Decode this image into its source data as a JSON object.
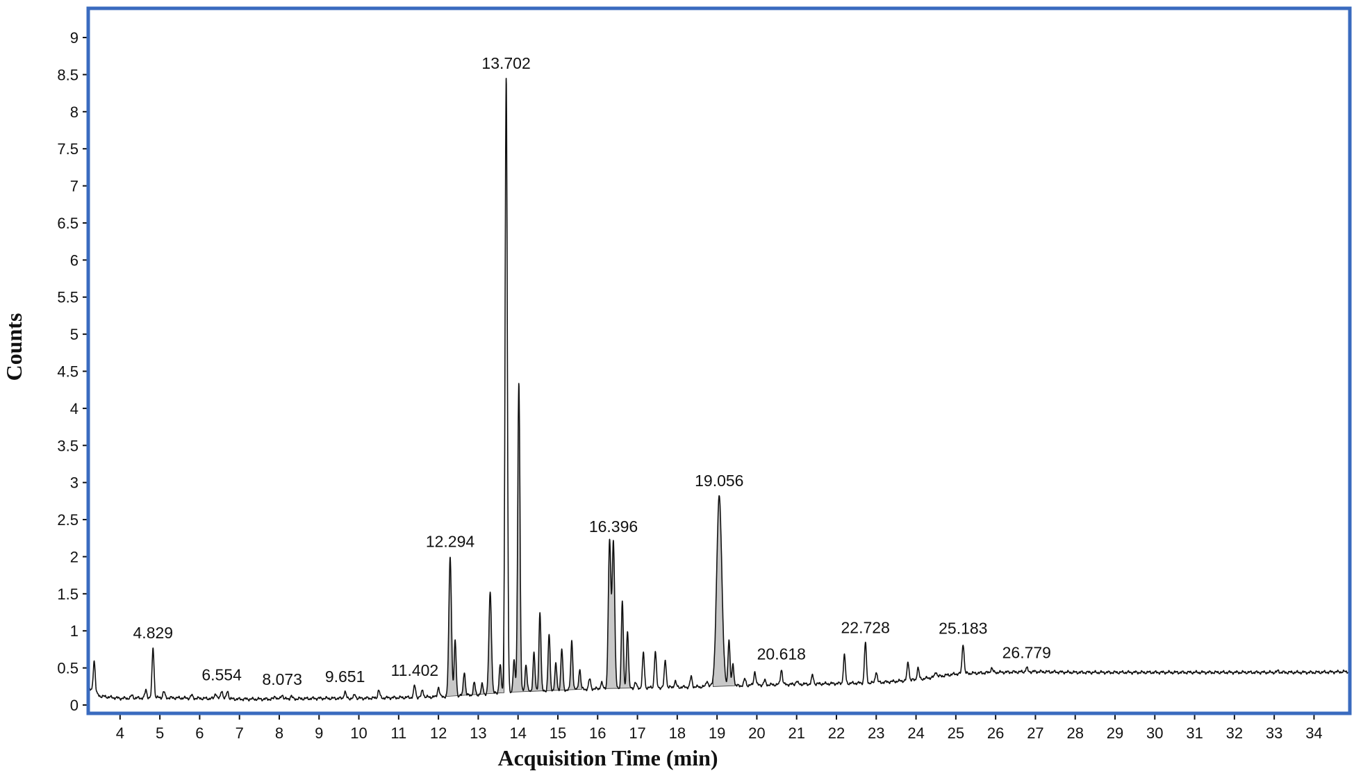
{
  "chart_data": {
    "type": "line",
    "title": "",
    "xlabel": "Acquisition Time (min)",
    "ylabel": "Counts",
    "xlim": [
      3.2,
      34.9
    ],
    "ylim": [
      0,
      9.3
    ],
    "xticks": [
      4,
      5,
      6,
      7,
      8,
      9,
      10,
      11,
      12,
      13,
      14,
      15,
      16,
      17,
      18,
      19,
      20,
      21,
      22,
      23,
      24,
      25,
      26,
      27,
      28,
      29,
      30,
      31,
      32,
      33,
      34
    ],
    "yticks": [
      0,
      0.5,
      1,
      1.5,
      2,
      2.5,
      3,
      3.5,
      4,
      4.5,
      5,
      5.5,
      6,
      6.5,
      7,
      7.5,
      8,
      8.5,
      9
    ],
    "ytick_labels": [
      "0",
      "0.5",
      "1",
      "1.5",
      "2",
      "2.5",
      "3",
      "3.5",
      "4",
      "4.5",
      "5",
      "5.5",
      "6",
      "6.5",
      "7",
      "7.5",
      "8",
      "8.5",
      "9"
    ],
    "grid": false,
    "colors": {
      "line": "#111111",
      "fill": "#c8c8c8",
      "frame": "#3a6bbf"
    },
    "baseline": [
      [
        3.2,
        0.22
      ],
      [
        3.5,
        0.12
      ],
      [
        4,
        0.09
      ],
      [
        5,
        0.1
      ],
      [
        6,
        0.09
      ],
      [
        7,
        0.08
      ],
      [
        8,
        0.08
      ],
      [
        9,
        0.09
      ],
      [
        10,
        0.09
      ],
      [
        11,
        0.1
      ],
      [
        12,
        0.11
      ],
      [
        13,
        0.14
      ],
      [
        14,
        0.18
      ],
      [
        15,
        0.2
      ],
      [
        16,
        0.22
      ],
      [
        17,
        0.23
      ],
      [
        18,
        0.24
      ],
      [
        19,
        0.25
      ],
      [
        20,
        0.27
      ],
      [
        21,
        0.28
      ],
      [
        22,
        0.29
      ],
      [
        23,
        0.3
      ],
      [
        24,
        0.34
      ],
      [
        25,
        0.42
      ],
      [
        26,
        0.44
      ],
      [
        27,
        0.45
      ],
      [
        28,
        0.44
      ],
      [
        30,
        0.44
      ],
      [
        32,
        0.44
      ],
      [
        34,
        0.44
      ],
      [
        34.9,
        0.45
      ]
    ],
    "peaks": [
      {
        "x": 3.35,
        "y": 0.6
      },
      {
        "x": 4.3,
        "y": 0.13
      },
      {
        "x": 4.65,
        "y": 0.2
      },
      {
        "x": 4.829,
        "y": 0.77,
        "label": "4.829"
      },
      {
        "x": 5.1,
        "y": 0.18
      },
      {
        "x": 5.8,
        "y": 0.13
      },
      {
        "x": 6.4,
        "y": 0.16
      },
      {
        "x": 6.554,
        "y": 0.2,
        "label": "6.554"
      },
      {
        "x": 6.7,
        "y": 0.19
      },
      {
        "x": 7.9,
        "y": 0.12
      },
      {
        "x": 8.073,
        "y": 0.14,
        "label": "8.073"
      },
      {
        "x": 8.3,
        "y": 0.12
      },
      {
        "x": 9.651,
        "y": 0.18,
        "label": "9.651"
      },
      {
        "x": 9.9,
        "y": 0.14
      },
      {
        "x": 10.5,
        "y": 0.2
      },
      {
        "x": 11.402,
        "y": 0.26,
        "label": "11.402"
      },
      {
        "x": 11.6,
        "y": 0.2
      },
      {
        "x": 12.0,
        "y": 0.24
      },
      {
        "x": 12.294,
        "y": 2.0,
        "label": "12.294"
      },
      {
        "x": 12.42,
        "y": 0.87
      },
      {
        "x": 12.65,
        "y": 0.45
      },
      {
        "x": 12.9,
        "y": 0.3
      },
      {
        "x": 13.1,
        "y": 0.28
      },
      {
        "x": 13.3,
        "y": 1.52
      },
      {
        "x": 13.55,
        "y": 0.55
      },
      {
        "x": 13.702,
        "y": 8.45,
        "label": "13.702"
      },
      {
        "x": 13.9,
        "y": 0.6
      },
      {
        "x": 14.02,
        "y": 4.36
      },
      {
        "x": 14.2,
        "y": 0.55
      },
      {
        "x": 14.4,
        "y": 0.7
      },
      {
        "x": 14.55,
        "y": 1.25
      },
      {
        "x": 14.78,
        "y": 0.95
      },
      {
        "x": 14.95,
        "y": 0.55
      },
      {
        "x": 15.1,
        "y": 0.75
      },
      {
        "x": 15.35,
        "y": 0.87
      },
      {
        "x": 15.55,
        "y": 0.48
      },
      {
        "x": 15.8,
        "y": 0.35
      },
      {
        "x": 16.1,
        "y": 0.3
      },
      {
        "x": 16.3,
        "y": 2.2
      },
      {
        "x": 16.396,
        "y": 2.2,
        "label": "16.396"
      },
      {
        "x": 16.62,
        "y": 1.4
      },
      {
        "x": 16.75,
        "y": 1.0
      },
      {
        "x": 16.95,
        "y": 0.3
      },
      {
        "x": 17.15,
        "y": 0.7
      },
      {
        "x": 17.45,
        "y": 0.72
      },
      {
        "x": 17.7,
        "y": 0.6
      },
      {
        "x": 17.95,
        "y": 0.32
      },
      {
        "x": 18.35,
        "y": 0.38
      },
      {
        "x": 18.75,
        "y": 0.33
      },
      {
        "x": 19.056,
        "y": 2.82,
        "label": "19.056"
      },
      {
        "x": 19.3,
        "y": 0.88
      },
      {
        "x": 19.4,
        "y": 0.55
      },
      {
        "x": 19.7,
        "y": 0.35
      },
      {
        "x": 19.95,
        "y": 0.45
      },
      {
        "x": 20.2,
        "y": 0.33
      },
      {
        "x": 20.618,
        "y": 0.48,
        "label": "20.618"
      },
      {
        "x": 21.0,
        "y": 0.32
      },
      {
        "x": 21.4,
        "y": 0.4
      },
      {
        "x": 22.2,
        "y": 0.67
      },
      {
        "x": 22.728,
        "y": 0.84,
        "label": "22.728"
      },
      {
        "x": 23.0,
        "y": 0.45
      },
      {
        "x": 23.8,
        "y": 0.58
      },
      {
        "x": 24.05,
        "y": 0.5
      },
      {
        "x": 24.5,
        "y": 0.45
      },
      {
        "x": 25.183,
        "y": 0.83,
        "label": "25.183"
      },
      {
        "x": 25.9,
        "y": 0.5
      },
      {
        "x": 26.779,
        "y": 0.5,
        "label": "26.779"
      },
      {
        "x": 33.1,
        "y": 0.46
      }
    ],
    "filled_ranges": [
      [
        12.2,
        13.65
      ],
      [
        13.82,
        15.6
      ],
      [
        16.2,
        16.9
      ],
      [
        18.9,
        19.45
      ]
    ]
  }
}
